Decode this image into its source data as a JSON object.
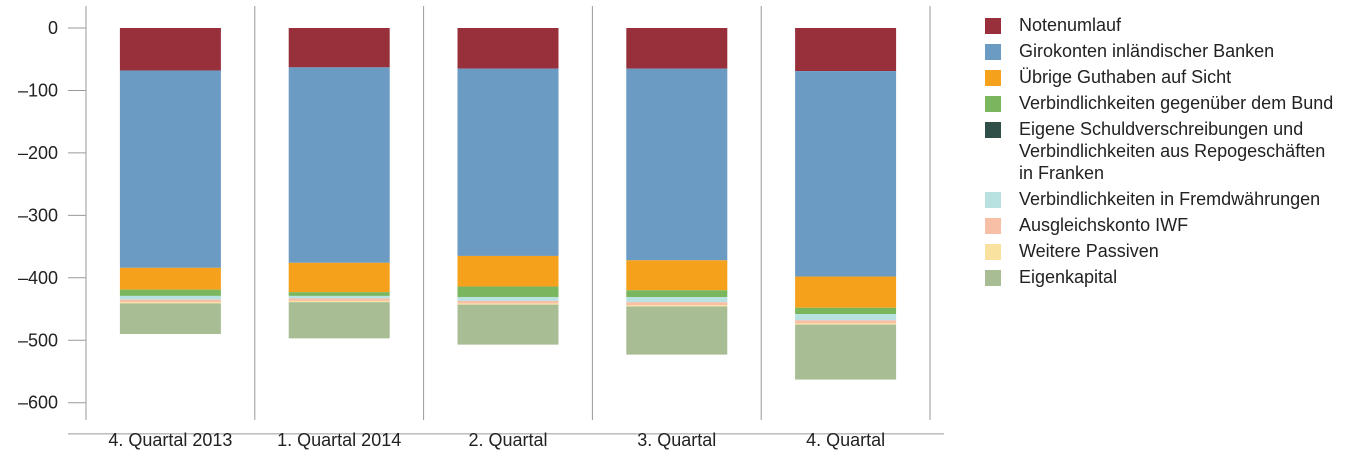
{
  "chart_data": {
    "type": "bar",
    "stacked": true,
    "categories": [
      "4. Quartal 2013",
      "1. Quartal 2014",
      "2. Quartal",
      "3. Quartal",
      "4. Quartal"
    ],
    "ylim": [
      -650,
      15
    ],
    "yticks": [
      0,
      -100,
      -200,
      -300,
      -400,
      -500,
      -600
    ],
    "ytick_labels": [
      "0",
      "–100",
      "–200",
      "–300",
      "–400",
      "–500",
      "–600"
    ],
    "grid": "vertical",
    "legend_position": "right",
    "series": [
      {
        "name": "Notenumlauf",
        "color": "#98303c",
        "values": [
          -68,
          -63,
          -65,
          -65,
          -69
        ]
      },
      {
        "name": "Girokonten inländischer Banken",
        "color": "#6b9bc3",
        "values": [
          -316,
          -313,
          -300,
          -307,
          -329
        ]
      },
      {
        "name": "Übrige Guthaben auf Sicht",
        "color": "#f5a11c",
        "values": [
          -35,
          -47,
          -49,
          -48,
          -50
        ]
      },
      {
        "name": "Verbindlichkeiten gegenüber dem Bund",
        "color": "#7ab65d",
        "values": [
          -10,
          -6,
          -17,
          -11,
          -10
        ]
      },
      {
        "name": "Eigene Schuldverschreibungen und Verbindlichkeiten aus Repogeschäften in Franken",
        "color": "#2f4f48",
        "values": [
          0,
          0,
          0,
          0,
          0
        ]
      },
      {
        "name": "Verbindlichkeiten in Fremdwährungen",
        "color": "#b8e2e2",
        "values": [
          -6,
          -4,
          -6,
          -8,
          -10
        ]
      },
      {
        "name": "Ausgleichskonto IWF",
        "color": "#f6bfa6",
        "values": [
          -4,
          -4,
          -4,
          -5,
          -5
        ]
      },
      {
        "name": "Weitere Passiven",
        "color": "#f9e1a0",
        "values": [
          -2,
          -2,
          -2,
          -2,
          -2
        ]
      },
      {
        "name": "Eigenkapital",
        "color": "#a9bd95",
        "values": [
          -49,
          -58,
          -64,
          -77,
          -88
        ]
      }
    ]
  }
}
